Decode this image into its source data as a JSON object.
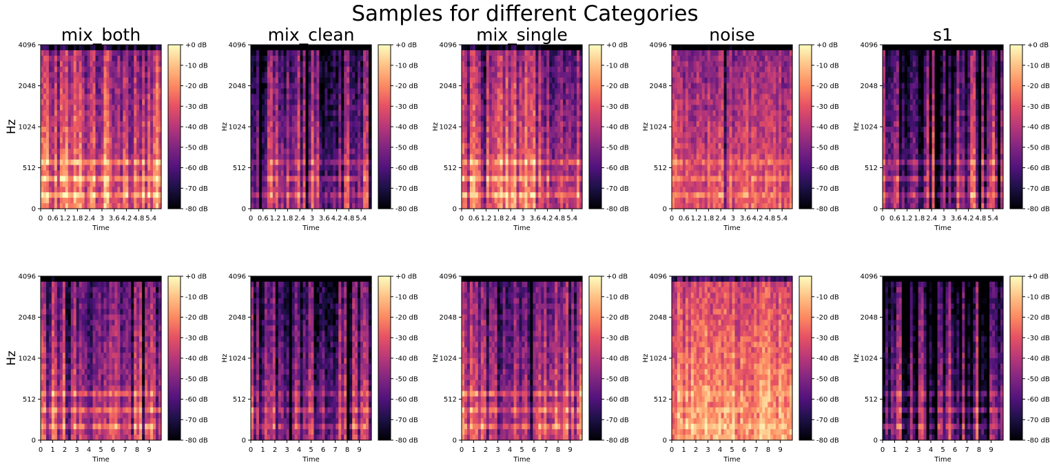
{
  "figure": {
    "suptitle": "Samples for different Categories"
  },
  "chart_data": [
    {
      "type": "heatmap",
      "title": "mix_both",
      "xlabel": "Time",
      "ylabel": "Hz",
      "xlim": [
        0,
        5.9
      ],
      "xticks": [
        "0",
        "0.6",
        "1.2",
        "1.8",
        "2.4",
        "3",
        "3.6",
        "4.2",
        "4.8",
        "5.4"
      ],
      "yticks": [
        "0",
        "512",
        "1024",
        "2048",
        "4096"
      ],
      "colorbar": {
        "ticks": [
          "+0 dB",
          "-10 dB",
          "-20 dB",
          "-30 dB",
          "-40 dB",
          "-50 dB",
          "-60 dB",
          "-70 dB",
          "-80 dB"
        ],
        "range_db": [
          -80,
          0
        ]
      },
      "texture": {
        "base": 0.55,
        "streaks": 0.35,
        "gaps": 0.05,
        "low_bands": 0.9,
        "top_dark": 0.55
      }
    },
    {
      "type": "heatmap",
      "title": "mix_clean",
      "xlabel": "Time",
      "ylabel": "Hz",
      "xlim": [
        0,
        5.9
      ],
      "xticks": [
        "0",
        "0.6",
        "1.2",
        "1.8",
        "2.4",
        "3",
        "3.6",
        "4.2",
        "4.8",
        "5.4"
      ],
      "yticks": [
        "0",
        "512",
        "1024",
        "2048",
        "4096"
      ],
      "colorbar": {
        "ticks": [
          "+0 dB",
          "-10 dB",
          "-20 dB",
          "-30 dB",
          "-40 dB",
          "-50 dB",
          "-60 dB",
          "-70 dB",
          "-80 dB"
        ],
        "range_db": [
          -80,
          0
        ]
      },
      "texture": {
        "base": 0.35,
        "streaks": 0.45,
        "gaps": 0.3,
        "low_bands": 0.75,
        "top_dark": 0.7
      }
    },
    {
      "type": "heatmap",
      "title": "mix_single",
      "xlabel": "Time",
      "ylabel": "Hz",
      "xlim": [
        0,
        5.9
      ],
      "xticks": [
        "0",
        "0.6",
        "1.2",
        "1.8",
        "2.4",
        "3",
        "3.6",
        "4.2",
        "4.8",
        "5.4"
      ],
      "yticks": [
        "0",
        "512",
        "1024",
        "2048",
        "4096"
      ],
      "colorbar": {
        "ticks": [
          "+0 dB",
          "-10 dB",
          "-20 dB",
          "-30 dB",
          "-40 dB",
          "-50 dB",
          "-60 dB",
          "-70 dB",
          "-80 dB"
        ],
        "range_db": [
          -80,
          0
        ]
      },
      "texture": {
        "base": 0.5,
        "streaks": 0.35,
        "gaps": 0.05,
        "low_bands": 0.85,
        "top_dark": 0.6
      }
    },
    {
      "type": "heatmap",
      "title": "noise",
      "xlabel": "Time",
      "ylabel": "Hz",
      "xlim": [
        0,
        5.9
      ],
      "xticks": [
        "0",
        "0.6",
        "1.2",
        "1.8",
        "2.4",
        "3",
        "3.6",
        "4.2",
        "4.8",
        "5.4"
      ],
      "yticks": [
        "0",
        "512",
        "1024",
        "2048",
        "4096"
      ],
      "colorbar": {
        "ticks": [
          "+0 dB",
          "-10 dB",
          "-20 dB",
          "-30 dB",
          "-40 dB",
          "-50 dB",
          "-60 dB",
          "-70 dB",
          "-80 dB"
        ],
        "range_db": [
          -80,
          0
        ]
      },
      "texture": {
        "base": 0.5,
        "streaks": 0.15,
        "gaps": 0.02,
        "low_bands": 0.7,
        "top_dark": 0.7
      }
    },
    {
      "type": "heatmap",
      "title": "s1",
      "xlabel": "Time",
      "ylabel": "Hz",
      "xlim": [
        0,
        5.9
      ],
      "xticks": [
        "0",
        "0.6",
        "1.2",
        "1.8",
        "2.4",
        "3",
        "3.6",
        "4.2",
        "4.8",
        "5.4"
      ],
      "yticks": [
        "0",
        "512",
        "1024",
        "2048",
        "4096"
      ],
      "colorbar": {
        "ticks": [
          "+0 dB",
          "-10 dB",
          "-20 dB",
          "-30 dB",
          "-40 dB",
          "-50 dB",
          "-60 dB",
          "-70 dB",
          "-80 dB"
        ],
        "range_db": [
          -80,
          0
        ]
      },
      "texture": {
        "base": 0.3,
        "streaks": 0.5,
        "gaps": 0.35,
        "low_bands": 0.8,
        "top_dark": 0.8
      }
    },
    {
      "type": "heatmap",
      "title": "",
      "xlabel": "Time",
      "ylabel": "Hz",
      "xlim": [
        0,
        10
      ],
      "xticks": [
        "0",
        "1",
        "2",
        "3",
        "4",
        "5",
        "6",
        "7",
        "8",
        "9"
      ],
      "yticks": [
        "0",
        "512",
        "1024",
        "2048",
        "4096"
      ],
      "colorbar": {
        "ticks": [
          "+0 dB",
          "-10 dB",
          "-20 dB",
          "-30 dB",
          "-40 dB",
          "-50 dB",
          "-60 dB",
          "-70 dB",
          "-80 dB"
        ],
        "range_db": [
          -80,
          0
        ]
      },
      "texture": {
        "base": 0.42,
        "streaks": 0.35,
        "gaps": 0.06,
        "low_bands": 0.85,
        "top_dark": 0.75
      }
    },
    {
      "type": "heatmap",
      "title": "",
      "xlabel": "Time",
      "ylabel": "Hz",
      "xlim": [
        0,
        10
      ],
      "xticks": [
        "0",
        "1",
        "2",
        "3",
        "4",
        "5",
        "6",
        "7",
        "8",
        "9"
      ],
      "yticks": [
        "0",
        "512",
        "1024",
        "2048",
        "4096"
      ],
      "colorbar": {
        "ticks": [
          "+0 dB",
          "-10 dB",
          "-20 dB",
          "-30 dB",
          "-40 dB",
          "-50 dB",
          "-60 dB",
          "-70 dB",
          "-80 dB"
        ],
        "range_db": [
          -80,
          0
        ]
      },
      "texture": {
        "base": 0.3,
        "streaks": 0.45,
        "gaps": 0.3,
        "low_bands": 0.75,
        "top_dark": 0.85
      }
    },
    {
      "type": "heatmap",
      "title": "",
      "xlabel": "Time",
      "ylabel": "Hz",
      "xlim": [
        0,
        10
      ],
      "xticks": [
        "0",
        "1",
        "2",
        "3",
        "4",
        "5",
        "6",
        "7",
        "8",
        "9"
      ],
      "yticks": [
        "0",
        "512",
        "1024",
        "2048",
        "4096"
      ],
      "colorbar": {
        "ticks": [
          "+0 dB",
          "-10 dB",
          "-20 dB",
          "-30 dB",
          "-40 dB",
          "-50 dB",
          "-60 dB",
          "-70 dB",
          "-80 dB"
        ],
        "range_db": [
          -80,
          0
        ]
      },
      "texture": {
        "base": 0.42,
        "streaks": 0.35,
        "gaps": 0.06,
        "low_bands": 0.85,
        "top_dark": 0.75
      }
    },
    {
      "type": "heatmap",
      "title": "",
      "xlabel": "Time",
      "ylabel": "Hz",
      "xlim": [
        0,
        10
      ],
      "xticks": [
        "0",
        "1",
        "2",
        "3",
        "4",
        "5",
        "6",
        "7",
        "8",
        "9"
      ],
      "yticks": [
        "0",
        "512",
        "1024",
        "2048",
        "4096"
      ],
      "colorbar": {
        "ticks": [
          "-10 dB",
          "-20 dB",
          "-30 dB",
          "-40 dB",
          "-50 dB",
          "-60 dB",
          "-70 dB",
          "-80 dB"
        ],
        "range_db": [
          -80,
          0
        ]
      },
      "texture": {
        "base": 0.68,
        "streaks": 0.15,
        "gaps": 0.0,
        "low_bands": 0.6,
        "top_dark": 0.5
      }
    },
    {
      "type": "heatmap",
      "title": "",
      "xlabel": "Time",
      "ylabel": "Hz",
      "xlim": [
        0,
        10
      ],
      "xticks": [
        "0",
        "1",
        "2",
        "3",
        "4",
        "5",
        "6",
        "7",
        "8",
        "9"
      ],
      "yticks": [
        "0",
        "512",
        "1024",
        "2048",
        "4096"
      ],
      "colorbar": {
        "ticks": [
          "+0 dB",
          "-10 dB",
          "-20 dB",
          "-30 dB",
          "-40 dB",
          "-50 dB",
          "-60 dB",
          "-70 dB",
          "-80 dB"
        ],
        "range_db": [
          -80,
          0
        ]
      },
      "texture": {
        "base": 0.28,
        "streaks": 0.5,
        "gaps": 0.35,
        "low_bands": 0.8,
        "top_dark": 0.85
      }
    }
  ]
}
